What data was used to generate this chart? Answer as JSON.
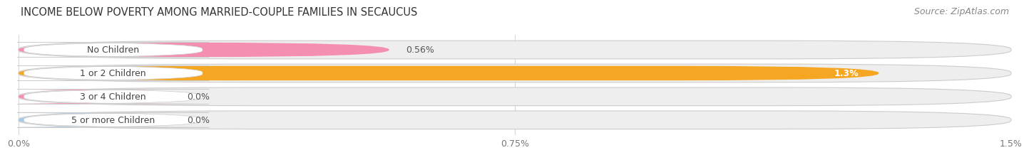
{
  "title": "INCOME BELOW POVERTY AMONG MARRIED-COUPLE FAMILIES IN SECAUCUS",
  "source": "Source: ZipAtlas.com",
  "categories": [
    "No Children",
    "1 or 2 Children",
    "3 or 4 Children",
    "5 or more Children"
  ],
  "values": [
    0.56,
    1.3,
    0.0,
    0.0
  ],
  "bar_colors": [
    "#f48fb1",
    "#f5a623",
    "#f48fb1",
    "#a8c8e8"
  ],
  "bar_bg_color": "#eeeeee",
  "bar_border_color": "#cccccc",
  "xlim_max": 1.5,
  "xticks": [
    0.0,
    0.75,
    1.5
  ],
  "xtick_labels": [
    "0.0%",
    "0.75%",
    "1.5%"
  ],
  "value_labels": [
    "0.56%",
    "1.3%",
    "0.0%",
    "0.0%"
  ],
  "value_label_inside": [
    false,
    true,
    false,
    false
  ],
  "title_fontsize": 10.5,
  "source_fontsize": 9,
  "category_fontsize": 9,
  "tick_fontsize": 9,
  "background_color": "#ffffff",
  "row_bg_colors": [
    "#fce4ec",
    "#fff3e0",
    "#fce4ec",
    "#e3f2fd"
  ],
  "row_bg_alpha": 0.3
}
